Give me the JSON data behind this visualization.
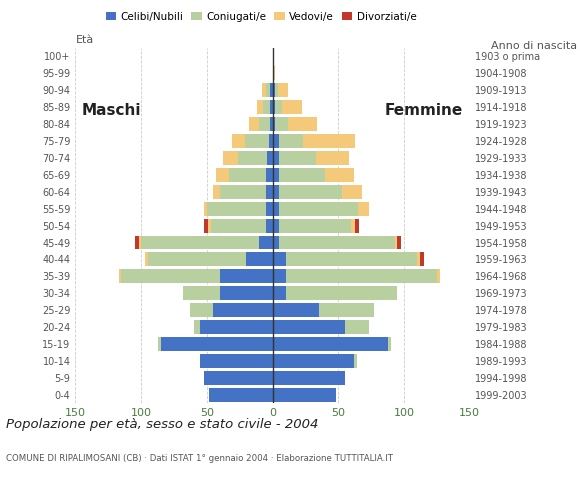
{
  "age_groups": [
    "0-4",
    "5-9",
    "10-14",
    "15-19",
    "20-24",
    "25-29",
    "30-34",
    "35-39",
    "40-44",
    "45-49",
    "50-54",
    "55-59",
    "60-64",
    "65-69",
    "70-74",
    "75-79",
    "80-84",
    "85-89",
    "90-94",
    "95-99",
    "100+"
  ],
  "birth_years": [
    "1999-2003",
    "1994-1998",
    "1989-1993",
    "1984-1988",
    "1979-1983",
    "1974-1978",
    "1969-1973",
    "1964-1968",
    "1959-1963",
    "1954-1958",
    "1949-1953",
    "1944-1948",
    "1939-1943",
    "1934-1938",
    "1929-1933",
    "1924-1928",
    "1919-1923",
    "1914-1918",
    "1909-1913",
    "1904-1908",
    "1903 o prima"
  ],
  "males": {
    "celibe": [
      48,
      52,
      55,
      85,
      55,
      45,
      40,
      40,
      20,
      10,
      5,
      5,
      5,
      5,
      4,
      3,
      2,
      2,
      2,
      0,
      0
    ],
    "coniugato": [
      0,
      0,
      0,
      2,
      5,
      18,
      28,
      75,
      75,
      90,
      42,
      45,
      35,
      28,
      22,
      18,
      8,
      5,
      3,
      0,
      0
    ],
    "vedovo": [
      0,
      0,
      0,
      0,
      0,
      0,
      0,
      2,
      2,
      2,
      2,
      2,
      5,
      10,
      12,
      10,
      8,
      5,
      3,
      0,
      0
    ],
    "divorziato": [
      0,
      0,
      0,
      0,
      0,
      0,
      0,
      0,
      0,
      3,
      3,
      0,
      0,
      0,
      0,
      0,
      0,
      0,
      0,
      0,
      0
    ]
  },
  "females": {
    "nubile": [
      48,
      55,
      62,
      88,
      55,
      35,
      10,
      10,
      10,
      5,
      5,
      5,
      5,
      5,
      5,
      5,
      2,
      2,
      2,
      0,
      0
    ],
    "coniugata": [
      0,
      0,
      2,
      2,
      18,
      42,
      85,
      115,
      100,
      88,
      55,
      60,
      48,
      35,
      28,
      18,
      10,
      5,
      2,
      0,
      0
    ],
    "vedova": [
      0,
      0,
      0,
      0,
      0,
      0,
      0,
      2,
      2,
      2,
      3,
      8,
      15,
      22,
      25,
      40,
      22,
      15,
      8,
      2,
      0
    ],
    "divorziata": [
      0,
      0,
      0,
      0,
      0,
      0,
      0,
      0,
      3,
      3,
      3,
      0,
      0,
      0,
      0,
      0,
      0,
      0,
      0,
      0,
      0
    ]
  },
  "color_celibe": "#4472c4",
  "color_coniugato": "#b8cfa0",
  "color_vedovo": "#f5c97a",
  "color_divorziato": "#c0392b",
  "xlim": 150,
  "title": "Popolazione per età, sesso e stato civile - 2004",
  "subtitle": "COMUNE DI RIPALIMOSANI (CB) · Dati ISTAT 1° gennaio 2004 · Elaborazione TUTTITALIA.IT",
  "ylabel_left": "Età",
  "ylabel_right": "Anno di nascita",
  "label_maschi": "Maschi",
  "label_femmine": "Femmine",
  "legend_labels": [
    "Celibi/Nubili",
    "Coniugati/e",
    "Vedovi/e",
    "Divorziati/e"
  ],
  "bg_color": "#ffffff",
  "xtick_color": "#4a7c3f",
  "ytick_color": "#555555",
  "grid_color": "#cccccc",
  "title_color": "#222222",
  "subtitle_color": "#555555"
}
